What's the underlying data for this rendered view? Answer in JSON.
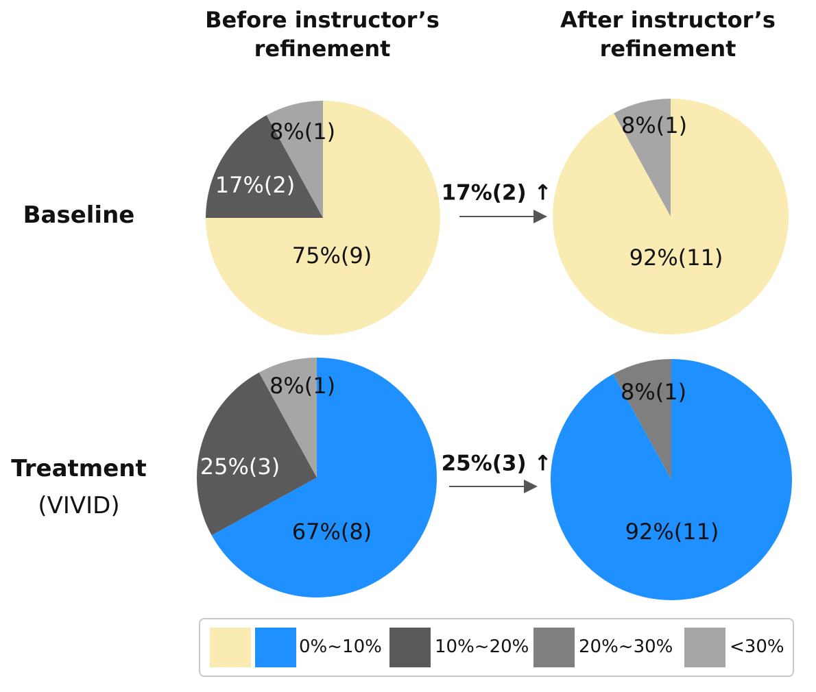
{
  "columns": {
    "before": "Before instructor’s refinement",
    "after": "After instructor’s refinement"
  },
  "rows": {
    "baseline": "Baseline",
    "treatment": "Treatment",
    "treatment_sub": "(VIVID)"
  },
  "colors": {
    "yellow": "#F9EBB2",
    "blue": "#1E90FF",
    "dark": "#5A5A5A",
    "mid": "#7F7F7F",
    "light": "#A6A6A6"
  },
  "chart_data": [
    {
      "type": "pie",
      "row": "Baseline",
      "column": "Before instructor’s refinement",
      "slices": [
        {
          "label": "75%(9)",
          "value": 75,
          "count": 9,
          "category": "0%~10%",
          "color": "#F9EBB2"
        },
        {
          "label": "17%(2)",
          "value": 17,
          "count": 2,
          "category": "10%~20%",
          "color": "#5A5A5A"
        },
        {
          "label": "8%(1)",
          "value": 8,
          "count": 1,
          "category": "<30%",
          "color": "#A6A6A6"
        }
      ]
    },
    {
      "type": "pie",
      "row": "Baseline",
      "column": "After instructor’s refinement",
      "slices": [
        {
          "label": "92%(11)",
          "value": 92,
          "count": 11,
          "category": "0%~10%",
          "color": "#F9EBB2"
        },
        {
          "label": "8%(1)",
          "value": 8,
          "count": 1,
          "category": "<30%",
          "color": "#A6A6A6"
        }
      ]
    },
    {
      "type": "pie",
      "row": "Treatment (VIVID)",
      "column": "Before instructor’s refinement",
      "slices": [
        {
          "label": "67%(8)",
          "value": 67,
          "count": 8,
          "category": "0%~10%",
          "color": "#1E90FF"
        },
        {
          "label": "25%(3)",
          "value": 25,
          "count": 3,
          "category": "10%~20%",
          "color": "#5A5A5A"
        },
        {
          "label": "8%(1)",
          "value": 8,
          "count": 1,
          "category": "<30%",
          "color": "#A6A6A6"
        }
      ]
    },
    {
      "type": "pie",
      "row": "Treatment (VIVID)",
      "column": "After instructor’s refinement",
      "slices": [
        {
          "label": "92%(11)",
          "value": 92,
          "count": 11,
          "category": "0%~10%",
          "color": "#1E90FF"
        },
        {
          "label": "8%(1)",
          "value": 8,
          "count": 1,
          "category": "20%~30%",
          "color": "#7F7F7F"
        }
      ]
    }
  ],
  "arrows": [
    {
      "label": "17%(2) ↑"
    },
    {
      "label": "25%(3) ↑"
    }
  ],
  "legend": [
    {
      "label": "0%~10%",
      "colors": [
        "#F9EBB2",
        "#1E90FF"
      ]
    },
    {
      "label": "10%~20%",
      "colors": [
        "#5A5A5A"
      ]
    },
    {
      "label": "20%~30%",
      "colors": [
        "#7F7F7F"
      ]
    },
    {
      "label": "<30%",
      "colors": [
        "#A6A6A6"
      ]
    }
  ]
}
